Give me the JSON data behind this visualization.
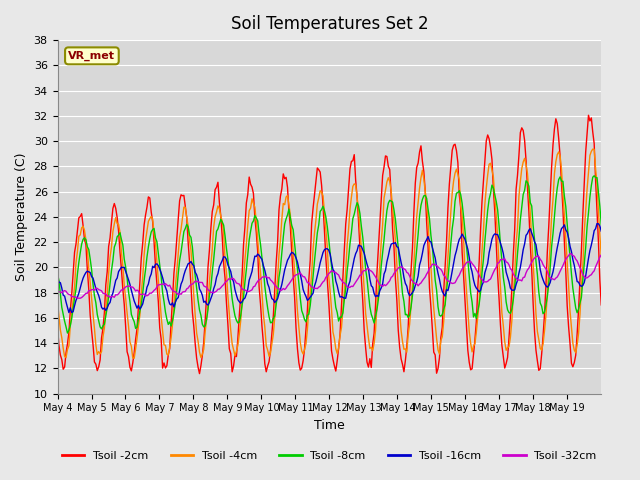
{
  "title": "Soil Temperatures Set 2",
  "xlabel": "Time",
  "ylabel": "Soil Temperature (C)",
  "ylim": [
    10,
    38
  ],
  "yticks": [
    10,
    12,
    14,
    16,
    18,
    20,
    22,
    24,
    26,
    28,
    30,
    32,
    34,
    36,
    38
  ],
  "bg_color": "#e8e8e8",
  "plot_bg_color": "#d8d8d8",
  "legend_label": "VR_met",
  "series_colors": {
    "Tsoil -2cm": "#ff0000",
    "Tsoil -4cm": "#ff8800",
    "Tsoil -8cm": "#00cc00",
    "Tsoil -16cm": "#0000cc",
    "Tsoil -32cm": "#cc00cc"
  },
  "n_days": 16,
  "pts_per_day": 24,
  "x_ticks": [
    "May 4",
    "May 5",
    "May 6",
    "May 7",
    "May 8",
    "May 9",
    "May 10",
    "May 11",
    "May 12",
    "May 13",
    "May 14",
    "May 15",
    "May 16",
    "May 17",
    "May 18",
    "May 19"
  ]
}
